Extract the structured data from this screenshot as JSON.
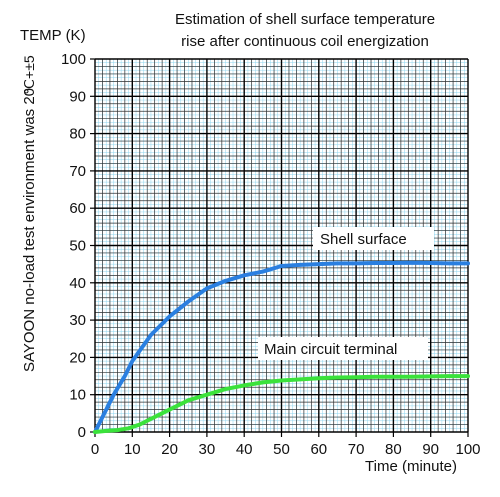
{
  "chart_data": {
    "type": "line",
    "title_lines": [
      "Estimation of shell surface temperature",
      "rise after continuous coil energization"
    ],
    "ylabel": "TEMP (K)",
    "xlabel": "Time (minute)",
    "side_note_main": "SAYOON no-load test environment was 20",
    "side_note_sub": "℃+±5",
    "xlim": [
      0,
      100
    ],
    "ylim": [
      0,
      100
    ],
    "xticks": [
      0,
      10,
      20,
      30,
      40,
      50,
      60,
      70,
      80,
      90,
      100
    ],
    "yticks": [
      0,
      10,
      20,
      30,
      40,
      50,
      60,
      70,
      80,
      90,
      100
    ],
    "grid": true,
    "series": [
      {
        "name": "Shell surface",
        "color": "#2a7fe0",
        "x": [
          0,
          3,
          5,
          8,
          10,
          15,
          20,
          25,
          30,
          35,
          40,
          45,
          50,
          55,
          60,
          65,
          70,
          75,
          80,
          85,
          90,
          95,
          100
        ],
        "y": [
          0,
          6,
          10,
          15,
          19,
          26,
          31,
          35,
          38.5,
          40.5,
          42,
          43,
          44.5,
          44.8,
          45,
          45.2,
          45.2,
          45.3,
          45.3,
          45.4,
          45.3,
          45.2,
          45.2
        ]
      },
      {
        "name": "Main circuit terminal",
        "color": "#3be23b",
        "x": [
          0,
          3,
          6,
          9,
          12,
          15,
          20,
          25,
          30,
          35,
          40,
          45,
          50,
          55,
          60,
          65,
          70,
          75,
          80,
          85,
          90,
          95,
          100
        ],
        "y": [
          0,
          0.3,
          0.5,
          1,
          2,
          3.5,
          6,
          8.5,
          10,
          11.5,
          12.5,
          13.3,
          13.8,
          14.1,
          14.4,
          14.6,
          14.7,
          14.8,
          14.8,
          14.8,
          14.9,
          15,
          15
        ]
      }
    ]
  }
}
